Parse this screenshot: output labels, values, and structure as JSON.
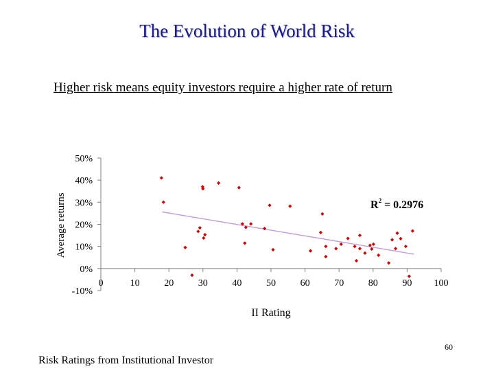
{
  "slide": {
    "title": "The Evolution of World Risk",
    "subtitle": "Higher risk means equity investors require a higher rate of return",
    "page_number": "60",
    "source_note": "Risk Ratings from Institutional Investor"
  },
  "chart_data": {
    "type": "scatter",
    "title": "",
    "xlabel": "II Rating",
    "ylabel": "Average returns",
    "xlim": [
      0,
      100
    ],
    "ylim": [
      -10,
      50
    ],
    "x_ticks": [
      "0",
      "10",
      "20",
      "30",
      "40",
      "50",
      "60",
      "70",
      "80",
      "90",
      "100"
    ],
    "y_ticks": [
      "50%",
      "40%",
      "30%",
      "20%",
      "10%",
      "0%",
      "-10%"
    ],
    "grid": false,
    "legend": "none",
    "point_color": "#cc0000",
    "trendline_color": "#c59bd6",
    "annotation": {
      "text": "R",
      "superscript": "2",
      "rest": " = 0.2976"
    },
    "trendline": {
      "x": [
        18,
        92
      ],
      "y": [
        25.6,
        6.5
      ]
    },
    "points": [
      {
        "x": 17.8,
        "y": 41
      },
      {
        "x": 18.4,
        "y": 30
      },
      {
        "x": 24.8,
        "y": 9.5
      },
      {
        "x": 26.8,
        "y": -3
      },
      {
        "x": 28.6,
        "y": 16.8
      },
      {
        "x": 29.1,
        "y": 18.4
      },
      {
        "x": 29.9,
        "y": 37
      },
      {
        "x": 30.0,
        "y": 36.1
      },
      {
        "x": 30.2,
        "y": 13.8
      },
      {
        "x": 30.6,
        "y": 15.3
      },
      {
        "x": 34.6,
        "y": 38.7
      },
      {
        "x": 40.6,
        "y": 36.6
      },
      {
        "x": 41.6,
        "y": 20.2
      },
      {
        "x": 42.3,
        "y": 11.5
      },
      {
        "x": 42.6,
        "y": 18.6
      },
      {
        "x": 44.1,
        "y": 20.2
      },
      {
        "x": 48.1,
        "y": 18.1
      },
      {
        "x": 49.6,
        "y": 28.6
      },
      {
        "x": 50.6,
        "y": 8.5
      },
      {
        "x": 55.6,
        "y": 28.2
      },
      {
        "x": 61.6,
        "y": 8.0
      },
      {
        "x": 64.6,
        "y": 16.3
      },
      {
        "x": 65.1,
        "y": 24.7
      },
      {
        "x": 66.1,
        "y": 10.0
      },
      {
        "x": 66.1,
        "y": 5.4
      },
      {
        "x": 69.1,
        "y": 9.0
      },
      {
        "x": 70.6,
        "y": 11.0
      },
      {
        "x": 72.6,
        "y": 13.6
      },
      {
        "x": 74.6,
        "y": 10.0
      },
      {
        "x": 75.1,
        "y": 3.5
      },
      {
        "x": 76.1,
        "y": 9.0
      },
      {
        "x": 76.1,
        "y": 15.0
      },
      {
        "x": 77.6,
        "y": 7.0
      },
      {
        "x": 79.1,
        "y": 10.5
      },
      {
        "x": 79.6,
        "y": 8.8
      },
      {
        "x": 80.1,
        "y": 11.0
      },
      {
        "x": 81.6,
        "y": 6.0
      },
      {
        "x": 84.6,
        "y": 2.5
      },
      {
        "x": 85.6,
        "y": 13.0
      },
      {
        "x": 86.6,
        "y": 9.0
      },
      {
        "x": 87.1,
        "y": 16.0
      },
      {
        "x": 88.1,
        "y": 13.5
      },
      {
        "x": 89.6,
        "y": 10.0
      },
      {
        "x": 90.6,
        "y": -3.5
      },
      {
        "x": 91.6,
        "y": 17.0
      }
    ]
  }
}
